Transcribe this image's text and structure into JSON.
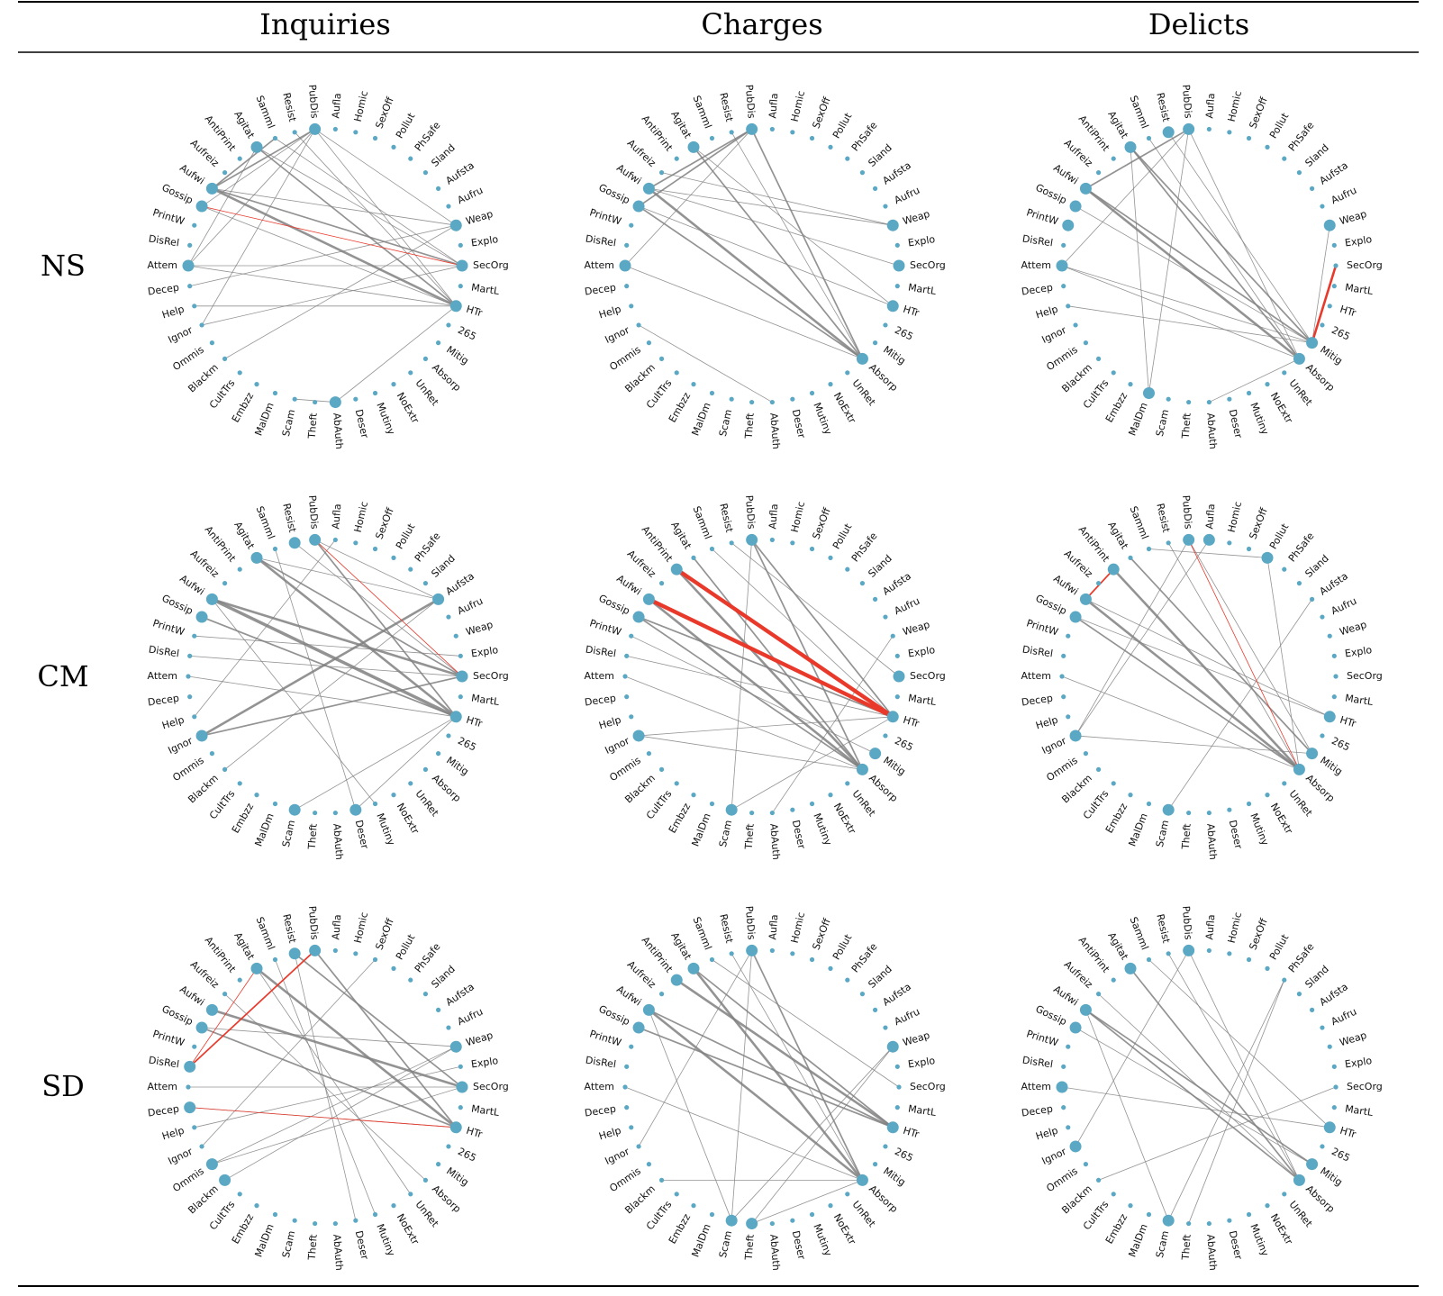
{
  "columns": [
    "Inquiries",
    "Charges",
    "Delicts"
  ],
  "rows": [
    "NS",
    "CM",
    "SD"
  ],
  "node_labels": [
    "Aufla",
    "Homic",
    "SexOff",
    "Pollut",
    "PhSafe",
    "Sland",
    "Aufsta",
    "Aufru",
    "Weap",
    "Explo",
    "SecOrg",
    "MartL",
    "HTr",
    "265",
    "Mitig",
    "Absorp",
    "UnRet",
    "NoExtr",
    "Mutiny",
    "Deser",
    "AbAuth",
    "Theft",
    "Scam",
    "MalDm",
    "Embzz",
    "CultTrs",
    "Blackm",
    "Ommis",
    "Ignor",
    "Help",
    "Decep",
    "Attem",
    "DisRel",
    "PrintW",
    "Gossip",
    "Aufwi",
    "Aufreiz",
    "AntiPrint",
    "Agitat",
    "Samml",
    "Resist",
    "PubDis"
  ],
  "colors": {
    "node": "#5ba8c4",
    "edge": "#808080",
    "highlight_edge": "#e8392b"
  },
  "panels": [
    {
      "row": "NS",
      "column": "Inquiries",
      "big": [
        "PubDis",
        "Agitat",
        "Aufwi",
        "Gossip",
        "Attem",
        "SecOrg",
        "HTr",
        "Weap",
        "AbAuth"
      ],
      "edges": [
        [
          "Aufwi",
          "HTr",
          3
        ],
        [
          "Aufwi",
          "SecOrg",
          2
        ],
        [
          "Aufwi",
          "Weap",
          1
        ],
        [
          "Agitat",
          "HTr",
          2
        ],
        [
          "Agitat",
          "SecOrg",
          1
        ],
        [
          "PubDis",
          "HTr",
          1
        ],
        [
          "PubDis",
          "Weap",
          1
        ],
        [
          "Gossip",
          "HTr",
          1
        ],
        [
          "Attem",
          "SecOrg",
          1
        ],
        [
          "Attem",
          "HTr",
          1
        ],
        [
          "Decep",
          "Weap",
          1
        ],
        [
          "Resist",
          "HTr",
          1
        ],
        [
          "Samml",
          "SecOrg",
          1
        ],
        [
          "PubDis",
          "Attem",
          1
        ],
        [
          "Agitat",
          "Attem",
          1
        ],
        [
          "Help",
          "HTr",
          1
        ],
        [
          "Ignor",
          "SecOrg",
          1
        ],
        [
          "AbAuth",
          "HTr",
          1
        ],
        [
          "Blackm",
          "Weap",
          1
        ],
        [
          "PubDis",
          "Ignor",
          1
        ],
        [
          "Aufwi",
          "Samml",
          2
        ],
        [
          "Aufwi",
          "PubDis",
          2
        ],
        [
          "Gossip",
          "PubDis",
          1
        ],
        [
          "Scam",
          "AbAuth",
          1
        ]
      ],
      "red": [
        [
          "Gossip",
          "SecOrg",
          1
        ]
      ]
    },
    {
      "row": "NS",
      "column": "Charges",
      "big": [
        "PubDis",
        "Agitat",
        "Aufwi",
        "Gossip",
        "Attem",
        "Absorp",
        "HTr",
        "SecOrg",
        "Weap"
      ],
      "edges": [
        [
          "PubDis",
          "Absorp",
          2
        ],
        [
          "Agitat",
          "Absorp",
          2
        ],
        [
          "Aufwi",
          "Absorp",
          3
        ],
        [
          "Gossip",
          "Absorp",
          2
        ],
        [
          "Attem",
          "Absorp",
          1
        ],
        [
          "Aufwi",
          "SecOrg",
          1
        ],
        [
          "Aufwi",
          "Weap",
          1
        ],
        [
          "Gossip",
          "HTr",
          1
        ],
        [
          "Agitat",
          "HTr",
          1
        ],
        [
          "Aufreiz",
          "Weap",
          1
        ],
        [
          "Ignor",
          "AbAuth",
          1
        ],
        [
          "PubDis",
          "Gossip",
          2
        ],
        [
          "PubDis",
          "Aufwi",
          2
        ],
        [
          "PubDis",
          "Attem",
          1
        ],
        [
          "Resist",
          "Absorp",
          1
        ]
      ],
      "red": []
    },
    {
      "row": "NS",
      "column": "Delicts",
      "big": [
        "PubDis",
        "Resist",
        "Agitat",
        "Aufwi",
        "Gossip",
        "PrintW",
        "Attem",
        "Mitig",
        "Absorp",
        "Weap",
        "MalDm"
      ],
      "edges": [
        [
          "PubDis",
          "Absorp",
          1
        ],
        [
          "Agitat",
          "Absorp",
          2
        ],
        [
          "Aufwi",
          "Absorp",
          3
        ],
        [
          "Gossip",
          "Mitig",
          1
        ],
        [
          "Attem",
          "Absorp",
          1
        ],
        [
          "Attem",
          "Mitig",
          1
        ],
        [
          "Agitat",
          "Mitig",
          2
        ],
        [
          "Aufwi",
          "Mitig",
          2
        ],
        [
          "PubDis",
          "MalDm",
          1
        ],
        [
          "Resist",
          "Mitig",
          1
        ],
        [
          "Help",
          "Mitig",
          1
        ],
        [
          "Weap",
          "Mitig",
          1
        ],
        [
          "AbAuth",
          "Absorp",
          1
        ],
        [
          "PubDis",
          "Attem",
          1
        ],
        [
          "Aufwi",
          "PubDis",
          2
        ],
        [
          "Samml",
          "Absorp",
          1
        ],
        [
          "Agitat",
          "MalDm",
          1
        ]
      ],
      "red": [
        [
          "SecOrg",
          "Mitig",
          3
        ]
      ]
    },
    {
      "row": "CM",
      "column": "Inquiries",
      "big": [
        "PubDis",
        "Resist",
        "Agitat",
        "Aufwi",
        "Gossip",
        "SecOrg",
        "HTr",
        "Aufsta",
        "Ignor",
        "Deser",
        "Scam"
      ],
      "edges": [
        [
          "Aufwi",
          "HTr",
          4
        ],
        [
          "Aufwi",
          "SecOrg",
          3
        ],
        [
          "Agitat",
          "HTr",
          3
        ],
        [
          "Agitat",
          "SecOrg",
          2
        ],
        [
          "PubDis",
          "HTr",
          2
        ],
        [
          "Ignor",
          "Aufsta",
          3
        ],
        [
          "Ignor",
          "SecOrg",
          2
        ],
        [
          "Gossip",
          "HTr",
          2
        ],
        [
          "Attem",
          "HTr",
          1
        ],
        [
          "Resist",
          "SecOrg",
          1
        ],
        [
          "Samml",
          "Deser",
          1
        ],
        [
          "PubDis",
          "Aufsta",
          1
        ],
        [
          "Aufwi",
          "Mutiny",
          1
        ],
        [
          "Scam",
          "HTr",
          1
        ],
        [
          "Blackm",
          "Aufsta",
          1
        ],
        [
          "Deser",
          "HTr",
          1
        ],
        [
          "PrintW",
          "Explo",
          1
        ],
        [
          "DisRel",
          "SecOrg",
          1
        ],
        [
          "Agitat",
          "Aufsta",
          1
        ],
        [
          "Help",
          "Aufla",
          1
        ]
      ],
      "red": [
        [
          "PubDis",
          "SecOrg",
          1
        ]
      ]
    },
    {
      "row": "CM",
      "column": "Charges",
      "big": [
        "PubDis",
        "AntiPrint",
        "Aufwi",
        "Gossip",
        "Ignor",
        "Absorp",
        "HTr",
        "Mitig",
        "Scam",
        "SecOrg"
      ],
      "edges": [
        [
          "Aufwi",
          "Absorp",
          3
        ],
        [
          "AntiPrint",
          "Absorp",
          3
        ],
        [
          "PubDis",
          "HTr",
          2
        ],
        [
          "PubDis",
          "Absorp",
          2
        ],
        [
          "Gossip",
          "Absorp",
          2
        ],
        [
          "Gossip",
          "HTr",
          2
        ],
        [
          "Agitat",
          "Absorp",
          2
        ],
        [
          "Ignor",
          "Absorp",
          1
        ],
        [
          "Ignor",
          "HTr",
          1
        ],
        [
          "Scam",
          "HTr",
          1
        ],
        [
          "Scam",
          "PubDis",
          1
        ],
        [
          "Attem",
          "Absorp",
          1
        ],
        [
          "DisRel",
          "HTr",
          1
        ],
        [
          "PrintW",
          "Mitig",
          1
        ],
        [
          "Resist",
          "SecOrg",
          1
        ],
        [
          "Samml",
          "HTr",
          1
        ],
        [
          "AbAuth",
          "Weap",
          1
        ]
      ],
      "red": [
        [
          "AntiPrint",
          "HTr",
          5
        ],
        [
          "Aufwi",
          "HTr",
          5
        ]
      ]
    },
    {
      "row": "CM",
      "column": "Delicts",
      "big": [
        "PubDis",
        "AntiPrint",
        "Aufwi",
        "Gossip",
        "Ignor",
        "Absorp",
        "HTr",
        "Mitig",
        "Pollut",
        "Aufla",
        "Scam"
      ],
      "edges": [
        [
          "Aufwi",
          "Absorp",
          3
        ],
        [
          "AntiPrint",
          "Absorp",
          3
        ],
        [
          "Agitat",
          "Mitig",
          2
        ],
        [
          "Gossip",
          "Absorp",
          2
        ],
        [
          "Ignor",
          "Mitig",
          1
        ],
        [
          "Ignor",
          "PubDis",
          1
        ],
        [
          "PubDis",
          "Mitig",
          1
        ],
        [
          "Aufwi",
          "HTr",
          1
        ],
        [
          "Gossip",
          "HTr",
          1
        ],
        [
          "Resist",
          "Absorp",
          1
        ],
        [
          "Samml",
          "Pollut",
          1
        ],
        [
          "Pollut",
          "Absorp",
          1
        ],
        [
          "Aufla",
          "Ignor",
          1
        ],
        [
          "Scam",
          "Aufsta",
          1
        ],
        [
          "Attem",
          "Absorp",
          1
        ]
      ],
      "red": [
        [
          "PubDis",
          "Absorp",
          1
        ],
        [
          "Aufwi",
          "AntiPrint",
          2
        ]
      ]
    },
    {
      "row": "SD",
      "column": "Inquiries",
      "big": [
        "PubDis",
        "Resist",
        "Agitat",
        "Aufwi",
        "Gossip",
        "DisRel",
        "Decep",
        "SecOrg",
        "HTr",
        "Weap",
        "Ommis",
        "Blackm"
      ],
      "edges": [
        [
          "Agitat",
          "HTr",
          3
        ],
        [
          "Aufwi",
          "SecOrg",
          3
        ],
        [
          "Gossip",
          "HTr",
          2
        ],
        [
          "Resist",
          "SecOrg",
          2
        ],
        [
          "PubDis",
          "HTr",
          2
        ],
        [
          "Ommis",
          "SecOrg",
          1
        ],
        [
          "Blackm",
          "Weap",
          1
        ],
        [
          "Attem",
          "SecOrg",
          1
        ],
        [
          "Help",
          "Explo",
          1
        ],
        [
          "SexOff",
          "Ignor",
          1
        ],
        [
          "Aufreiz",
          "Absorp",
          1
        ],
        [
          "Samml",
          "Mutiny",
          1
        ],
        [
          "Agitat",
          "UnRet",
          1
        ],
        [
          "Deser",
          "Resist",
          1
        ],
        [
          "Gossip",
          "Weap",
          1
        ],
        [
          "Decep",
          "HTr",
          1
        ],
        [
          "Ommis",
          "Weap",
          1
        ]
      ],
      "red": [
        [
          "PubDis",
          "DisRel",
          2
        ],
        [
          "Agitat",
          "DisRel",
          1
        ],
        [
          "Decep",
          "HTr",
          1
        ]
      ]
    },
    {
      "row": "SD",
      "column": "Charges",
      "big": [
        "PubDis",
        "Agitat",
        "AntiPrint",
        "Aufwi",
        "Gossip",
        "HTr",
        "Absorp",
        "Weap",
        "Scam",
        "Theft"
      ],
      "edges": [
        [
          "Aufwi",
          "Absorp",
          3
        ],
        [
          "Agitat",
          "Absorp",
          3
        ],
        [
          "AntiPrint",
          "HTr",
          3
        ],
        [
          "Gossip",
          "HTr",
          2
        ],
        [
          "Aufwi",
          "HTr",
          2
        ],
        [
          "PubDis",
          "Absorp",
          2
        ],
        [
          "Agitat",
          "HTr",
          2
        ],
        [
          "Scam",
          "Aufwi",
          1
        ],
        [
          "Scam",
          "Weap",
          1
        ],
        [
          "Theft",
          "Absorp",
          1
        ],
        [
          "Theft",
          "Weap",
          1
        ],
        [
          "Blackm",
          "Absorp",
          1
        ],
        [
          "Ignor",
          "PubDis",
          1
        ],
        [
          "Attem",
          "Absorp",
          1
        ],
        [
          "Samml",
          "SecOrg",
          1
        ],
        [
          "PubDis",
          "Scam",
          1
        ],
        [
          "Resist",
          "Absorp",
          1
        ]
      ],
      "red": []
    },
    {
      "row": "SD",
      "column": "Delicts",
      "big": [
        "PubDis",
        "Agitat",
        "Aufwi",
        "Gossip",
        "Attem",
        "Absorp",
        "HTr",
        "Mitig",
        "Ignor",
        "Scam"
      ],
      "edges": [
        [
          "Aufwi",
          "Absorp",
          2
        ],
        [
          "Agitat",
          "Absorp",
          2
        ],
        [
          "Aufwi",
          "Mitig",
          2
        ],
        [
          "Gossip",
          "Mitig",
          1
        ],
        [
          "PubDis",
          "Absorp",
          1
        ],
        [
          "Attem",
          "HTr",
          1
        ],
        [
          "Ignor",
          "PubDis",
          1
        ],
        [
          "Scam",
          "PhSafe",
          1
        ],
        [
          "Scam",
          "Aufwi",
          1
        ],
        [
          "Theft",
          "PhSafe",
          1
        ],
        [
          "Blackm",
          "SecOrg",
          1
        ],
        [
          "Resist",
          "Absorp",
          1
        ],
        [
          "Samml",
          "HTr",
          1
        ],
        [
          "Aufreiz",
          "Absorp",
          1
        ]
      ],
      "red": []
    }
  ]
}
